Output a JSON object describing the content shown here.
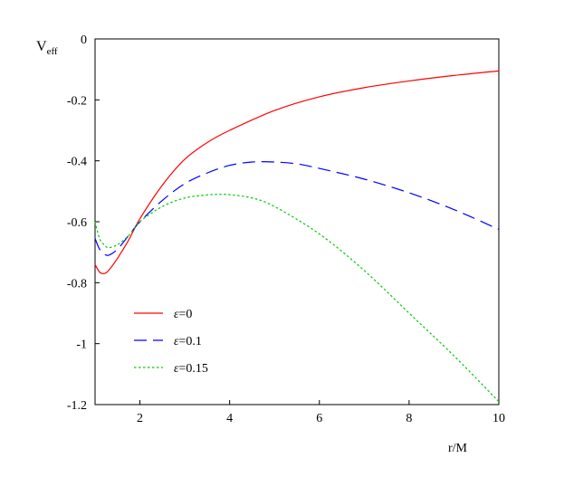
{
  "chart_data": {
    "type": "line",
    "title": "",
    "xlabel": "r/M",
    "ylabel_main": "V",
    "ylabel_sub": "eff",
    "xlim": [
      1,
      10
    ],
    "ylim": [
      -1.2,
      0
    ],
    "xticks": [
      2,
      4,
      6,
      8,
      10
    ],
    "yticks": [
      0,
      -0.2,
      -0.4,
      -0.6,
      -0.8,
      -1,
      -1.2
    ],
    "xtick_labels": [
      "2",
      "4",
      "6",
      "8",
      "10"
    ],
    "ytick_labels": [
      "0",
      "-0.2",
      "-0.4",
      "-0.6",
      "-0.8",
      "-1",
      "-1.2"
    ],
    "grid": false,
    "legend_position": "lower-left",
    "series": [
      {
        "name": "ε=0",
        "legend_symbol": "ε",
        "legend_value": "=0",
        "color": "#ff0000",
        "dash": "solid",
        "x": [
          1.0,
          1.1,
          1.2,
          1.3,
          1.5,
          1.75,
          2.0,
          2.5,
          3.0,
          3.5,
          4.0,
          5.0,
          6.0,
          7.0,
          8.0,
          9.0,
          10.0
        ],
        "y": [
          -0.74,
          -0.765,
          -0.77,
          -0.76,
          -0.72,
          -0.66,
          -0.59,
          -0.48,
          -0.395,
          -0.34,
          -0.3,
          -0.235,
          -0.19,
          -0.16,
          -0.138,
          -0.12,
          -0.105
        ]
      },
      {
        "name": "ε=0.1",
        "legend_symbol": "ε",
        "legend_value": "=0.1",
        "color": "#0000ff",
        "dash": "long-dash",
        "x": [
          1.0,
          1.1,
          1.2,
          1.3,
          1.5,
          1.75,
          2.0,
          2.5,
          3.0,
          3.5,
          4.0,
          4.5,
          5.0,
          5.5,
          6.0,
          7.0,
          8.0,
          9.0,
          10.0
        ],
        "y": [
          -0.655,
          -0.69,
          -0.705,
          -0.71,
          -0.69,
          -0.645,
          -0.6,
          -0.53,
          -0.475,
          -0.44,
          -0.415,
          -0.404,
          -0.404,
          -0.41,
          -0.425,
          -0.46,
          -0.505,
          -0.56,
          -0.625
        ]
      },
      {
        "name": "ε=0.15",
        "legend_symbol": "ε",
        "legend_value": "=0.15",
        "color": "#00cc00",
        "dash": "dotted",
        "x": [
          1.0,
          1.1,
          1.2,
          1.3,
          1.5,
          1.75,
          2.0,
          2.5,
          3.0,
          3.5,
          3.8,
          4.0,
          4.5,
          5.0,
          6.0,
          7.0,
          8.0,
          9.0,
          10.0
        ],
        "y": [
          -0.6,
          -0.655,
          -0.675,
          -0.685,
          -0.675,
          -0.645,
          -0.6,
          -0.55,
          -0.522,
          -0.512,
          -0.51,
          -0.511,
          -0.522,
          -0.55,
          -0.64,
          -0.76,
          -0.9,
          -1.04,
          -1.19
        ]
      }
    ]
  }
}
